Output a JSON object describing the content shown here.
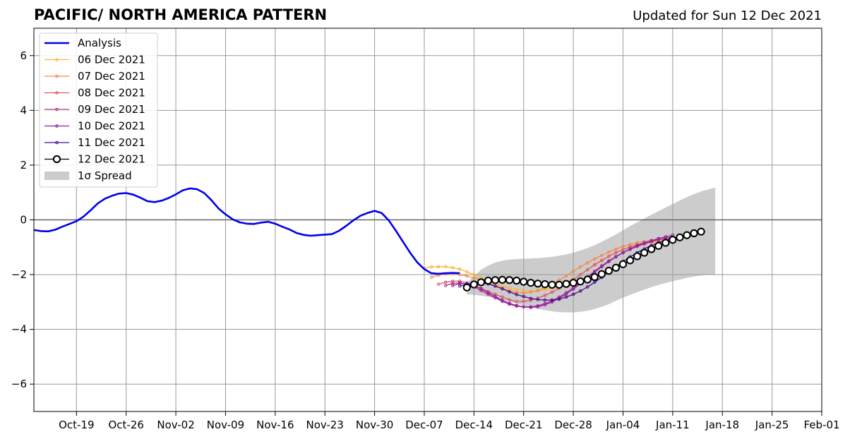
{
  "header": {
    "title": "PACIFIC/ NORTH AMERICA PATTERN",
    "updated": "Updated for Sun 12 Dec 2021"
  },
  "colors": {
    "analysis": "#0000ee",
    "spread": "#cccccc",
    "grid": "#9a9a9a",
    "zero_line": "#666666"
  },
  "chart_data": {
    "type": "line",
    "title": "PACIFIC/ NORTH AMERICA PATTERN",
    "xlabel": "",
    "ylabel": "",
    "x_axis": {
      "type": "date",
      "range": [
        "2021-10-13",
        "2022-02-01"
      ],
      "ticks": [
        "2021-10-19",
        "2021-10-26",
        "2021-11-02",
        "2021-11-09",
        "2021-11-16",
        "2021-11-23",
        "2021-11-30",
        "2021-12-07",
        "2021-12-14",
        "2021-12-21",
        "2021-12-28",
        "2022-01-04",
        "2022-01-11",
        "2022-01-18",
        "2022-01-25",
        "2022-02-01"
      ],
      "tick_labels": [
        "Oct-19",
        "Oct-26",
        "Nov-02",
        "Nov-09",
        "Nov-16",
        "Nov-23",
        "Nov-30",
        "Dec-07",
        "Dec-14",
        "Dec-21",
        "Dec-28",
        "Jan-04",
        "Jan-11",
        "Jan-18",
        "Jan-25",
        "Feb-01"
      ]
    },
    "y_axis": {
      "range": [
        -7,
        7
      ],
      "ticks": [
        -6,
        -4,
        -2,
        0,
        2,
        4,
        6
      ],
      "tick_labels": [
        "−6",
        "−4",
        "−2",
        "0",
        "2",
        "4",
        "6"
      ]
    },
    "grid": true,
    "legend": {
      "placement": "top-left"
    },
    "analysis": {
      "name": "Analysis",
      "color": "#0000ee",
      "points": [
        [
          "2021-10-13",
          -0.37
        ],
        [
          "2021-10-14",
          -0.41
        ],
        [
          "2021-10-15",
          -0.42
        ],
        [
          "2021-10-16",
          -0.36
        ],
        [
          "2021-10-17",
          -0.25
        ],
        [
          "2021-10-18",
          -0.15
        ],
        [
          "2021-10-19",
          -0.05
        ],
        [
          "2021-10-20",
          0.12
        ],
        [
          "2021-10-21",
          0.35
        ],
        [
          "2021-10-22",
          0.6
        ],
        [
          "2021-10-23",
          0.77
        ],
        [
          "2021-10-24",
          0.88
        ],
        [
          "2021-10-25",
          0.96
        ],
        [
          "2021-10-26",
          0.98
        ],
        [
          "2021-10-27",
          0.92
        ],
        [
          "2021-10-28",
          0.81
        ],
        [
          "2021-10-29",
          0.68
        ],
        [
          "2021-10-30",
          0.65
        ],
        [
          "2021-10-31",
          0.7
        ],
        [
          "2021-11-01",
          0.8
        ],
        [
          "2021-11-02",
          0.93
        ],
        [
          "2021-11-03",
          1.08
        ],
        [
          "2021-11-04",
          1.15
        ],
        [
          "2021-11-05",
          1.12
        ],
        [
          "2021-11-06",
          0.98
        ],
        [
          "2021-11-07",
          0.72
        ],
        [
          "2021-11-08",
          0.42
        ],
        [
          "2021-11-09",
          0.2
        ],
        [
          "2021-11-10",
          0.02
        ],
        [
          "2021-11-11",
          -0.09
        ],
        [
          "2021-11-12",
          -0.14
        ],
        [
          "2021-11-13",
          -0.15
        ],
        [
          "2021-11-14",
          -0.1
        ],
        [
          "2021-11-15",
          -0.07
        ],
        [
          "2021-11-16",
          -0.14
        ],
        [
          "2021-11-17",
          -0.25
        ],
        [
          "2021-11-18",
          -0.35
        ],
        [
          "2021-11-19",
          -0.48
        ],
        [
          "2021-11-20",
          -0.55
        ],
        [
          "2021-11-21",
          -0.58
        ],
        [
          "2021-11-22",
          -0.56
        ],
        [
          "2021-11-23",
          -0.54
        ],
        [
          "2021-11-24",
          -0.52
        ],
        [
          "2021-11-25",
          -0.4
        ],
        [
          "2021-11-26",
          -0.22
        ],
        [
          "2021-11-27",
          -0.02
        ],
        [
          "2021-11-28",
          0.15
        ],
        [
          "2021-11-29",
          0.25
        ],
        [
          "2021-11-30",
          0.33
        ],
        [
          "2021-12-01",
          0.25
        ],
        [
          "2021-12-02",
          -0.02
        ],
        [
          "2021-12-03",
          -0.4
        ],
        [
          "2021-12-04",
          -0.8
        ],
        [
          "2021-12-05",
          -1.2
        ],
        [
          "2021-12-06",
          -1.55
        ],
        [
          "2021-12-07",
          -1.8
        ],
        [
          "2021-12-08",
          -1.95
        ],
        [
          "2021-12-09",
          -1.97
        ],
        [
          "2021-12-10",
          -1.95
        ],
        [
          "2021-12-11",
          -1.94
        ],
        [
          "2021-12-12",
          -1.95
        ]
      ]
    },
    "series": [
      {
        "name": "06 Dec 2021",
        "color": "#f7b73a",
        "start": "2021-12-07",
        "values": [
          -1.76,
          -1.72,
          -1.71,
          -1.71,
          -1.75,
          -1.8,
          -1.9,
          -2.0,
          -2.12,
          -2.22,
          -2.33,
          -2.43,
          -2.5,
          -2.55,
          -2.58,
          -2.6,
          -2.6,
          -2.55,
          -2.5,
          -2.45,
          -2.3,
          -2.15,
          -2.0,
          -1.82,
          -1.65,
          -1.5,
          -1.33,
          -1.2,
          -1.08,
          -0.98,
          -0.9,
          -0.85,
          -0.82,
          -0.78,
          -0.74,
          -0.7
        ]
      },
      {
        "name": "07 Dec 2021",
        "color": "#f08b4c",
        "start": "2021-12-08",
        "values": [
          -2.1,
          -2.02,
          -1.98,
          -1.96,
          -2.0,
          -2.05,
          -2.12,
          -2.2,
          -2.3,
          -2.4,
          -2.5,
          -2.6,
          -2.65,
          -2.67,
          -2.64,
          -2.58,
          -2.48,
          -2.35,
          -2.2,
          -2.05,
          -1.88,
          -1.72,
          -1.57,
          -1.43,
          -1.3,
          -1.18,
          -1.07,
          -0.97,
          -0.9,
          -0.84,
          -0.79,
          -0.75,
          -0.71,
          -0.67,
          -0.62
        ]
      },
      {
        "name": "08 Dec 2021",
        "color": "#d9576d",
        "start": "2021-12-09",
        "values": [
          -2.35,
          -2.28,
          -2.24,
          -2.24,
          -2.3,
          -2.4,
          -2.5,
          -2.62,
          -2.72,
          -2.82,
          -2.92,
          -2.98,
          -2.98,
          -2.94,
          -2.86,
          -2.76,
          -2.64,
          -2.5,
          -2.34,
          -2.18,
          -2.0,
          -1.82,
          -1.64,
          -1.48,
          -1.33,
          -1.2,
          -1.09,
          -0.99,
          -0.91,
          -0.84,
          -0.78,
          -0.73,
          -0.68,
          -0.63
        ]
      },
      {
        "name": "09 Dec 2021",
        "color": "#b12f82",
        "start": "2021-12-10",
        "values": [
          -2.4,
          -2.32,
          -2.3,
          -2.35,
          -2.45,
          -2.58,
          -2.72,
          -2.85,
          -2.98,
          -3.08,
          -3.15,
          -3.18,
          -3.18,
          -3.14,
          -3.06,
          -2.95,
          -2.82,
          -2.66,
          -2.48,
          -2.28,
          -2.08,
          -1.88,
          -1.68,
          -1.5,
          -1.34,
          -1.2,
          -1.08,
          -0.97,
          -0.88,
          -0.8,
          -0.73,
          -0.67,
          -0.62
        ]
      },
      {
        "name": "10 Dec 2021",
        "color": "#8b1ea8",
        "start": "2021-12-11",
        "values": [
          -2.4,
          -2.33,
          -2.33,
          -2.4,
          -2.52,
          -2.66,
          -2.8,
          -2.94,
          -3.05,
          -3.13,
          -3.18,
          -3.2,
          -3.17,
          -3.1,
          -3.0,
          -2.87,
          -2.71,
          -2.53,
          -2.33,
          -2.12,
          -1.91,
          -1.71,
          -1.52,
          -1.35,
          -1.2,
          -1.06,
          -0.94,
          -0.84,
          -0.76,
          -0.68,
          -0.62,
          -0.56
        ]
      },
      {
        "name": "11 Dec 2021",
        "color": "#4a0d8f",
        "start": "2021-12-12",
        "values": [
          -2.42,
          -2.35,
          -2.3,
          -2.3,
          -2.34,
          -2.42,
          -2.52,
          -2.63,
          -2.73,
          -2.8,
          -2.87,
          -2.91,
          -2.93,
          -2.93,
          -2.9,
          -2.82,
          -2.72,
          -2.6,
          -2.45,
          -2.28,
          -2.1,
          -1.9,
          -1.7,
          -1.52,
          -1.35,
          -1.2,
          -1.06,
          -0.94,
          -0.83,
          -0.74,
          -0.66
        ]
      },
      {
        "name": "12 Dec 2021",
        "color": "#000000",
        "start": "2021-12-13",
        "values": [
          -2.47,
          -2.36,
          -2.28,
          -2.22,
          -2.2,
          -2.19,
          -2.2,
          -2.22,
          -2.26,
          -2.3,
          -2.33,
          -2.35,
          -2.37,
          -2.37,
          -2.34,
          -2.3,
          -2.25,
          -2.18,
          -2.09,
          -1.98,
          -1.86,
          -1.75,
          -1.62,
          -1.48,
          -1.33,
          -1.2,
          -1.07,
          -0.95,
          -0.84,
          -0.73,
          -0.64,
          -0.56,
          -0.49,
          -0.43
        ]
      }
    ],
    "spread": {
      "name": "1σ Spread",
      "color": "#cccccc",
      "start": "2021-12-13",
      "upper": [
        -2.3,
        -2.05,
        -1.82,
        -1.67,
        -1.56,
        -1.49,
        -1.45,
        -1.43,
        -1.42,
        -1.41,
        -1.4,
        -1.38,
        -1.35,
        -1.31,
        -1.26,
        -1.2,
        -1.12,
        -1.03,
        -0.92,
        -0.8,
        -0.67,
        -0.53,
        -0.38,
        -0.23,
        -0.09,
        0.05,
        0.19,
        0.32,
        0.45,
        0.58,
        0.71,
        0.83,
        0.94,
        1.04,
        1.11,
        1.18
      ],
      "lower": [
        -2.72,
        -2.74,
        -2.77,
        -2.81,
        -2.86,
        -2.92,
        -2.99,
        -3.06,
        -3.13,
        -3.19,
        -3.25,
        -3.3,
        -3.34,
        -3.37,
        -3.38,
        -3.38,
        -3.36,
        -3.32,
        -3.26,
        -3.18,
        -3.08,
        -2.96,
        -2.84,
        -2.74,
        -2.64,
        -2.55,
        -2.46,
        -2.38,
        -2.31,
        -2.24,
        -2.18,
        -2.12,
        -2.07,
        -2.03,
        -2.01,
        -2.0
      ]
    }
  }
}
